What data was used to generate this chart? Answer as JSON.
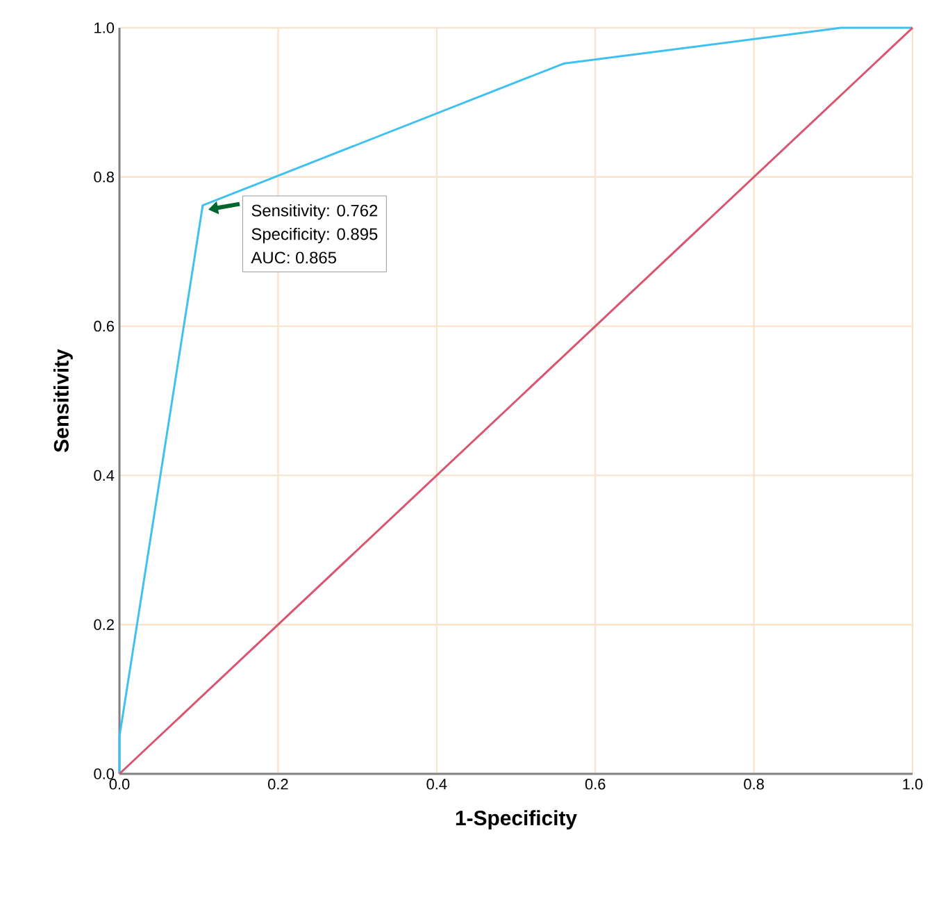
{
  "chart_data": {
    "type": "line",
    "xlabel": "1-Specificity",
    "ylabel": "Sensitivity",
    "series": [
      {
        "x": [
          0,
          0,
          0.105,
          0.56,
          0.91,
          1
        ],
        "values": [
          0,
          0.05,
          0.762,
          0.952,
          1,
          1
        ],
        "color": "#3ec1f0"
      },
      {
        "x": [
          0,
          1
        ],
        "values": [
          0,
          1
        ],
        "color": "#d9546e"
      }
    ],
    "xlim": [
      0,
      1
    ],
    "ylim": [
      0,
      1
    ],
    "xticks": [
      {
        "value": 0,
        "label": "0.0"
      },
      {
        "value": 0.2,
        "label": "0.2"
      },
      {
        "value": 0.4,
        "label": "0.4"
      },
      {
        "value": 0.6,
        "label": "0.6"
      },
      {
        "value": 0.8,
        "label": "0.8"
      },
      {
        "value": 1,
        "label": "1.0"
      }
    ],
    "yticks": [
      {
        "value": 0,
        "label": "0.0"
      },
      {
        "value": 0.2,
        "label": "0.2"
      },
      {
        "value": 0.4,
        "label": "0.4"
      },
      {
        "value": 0.6,
        "label": "0.6"
      },
      {
        "value": 0.8,
        "label": "0.8"
      },
      {
        "value": 1,
        "label": "1.0"
      }
    ],
    "grid": true,
    "marker": "none",
    "line_style": "solid",
    "annotations": [
      {
        "text": "Sensitivity: 0.762",
        "x": 0.105,
        "y": 0.762
      },
      "Specificity: 0.895",
      "AUC: 0.865"
    ]
  }
}
